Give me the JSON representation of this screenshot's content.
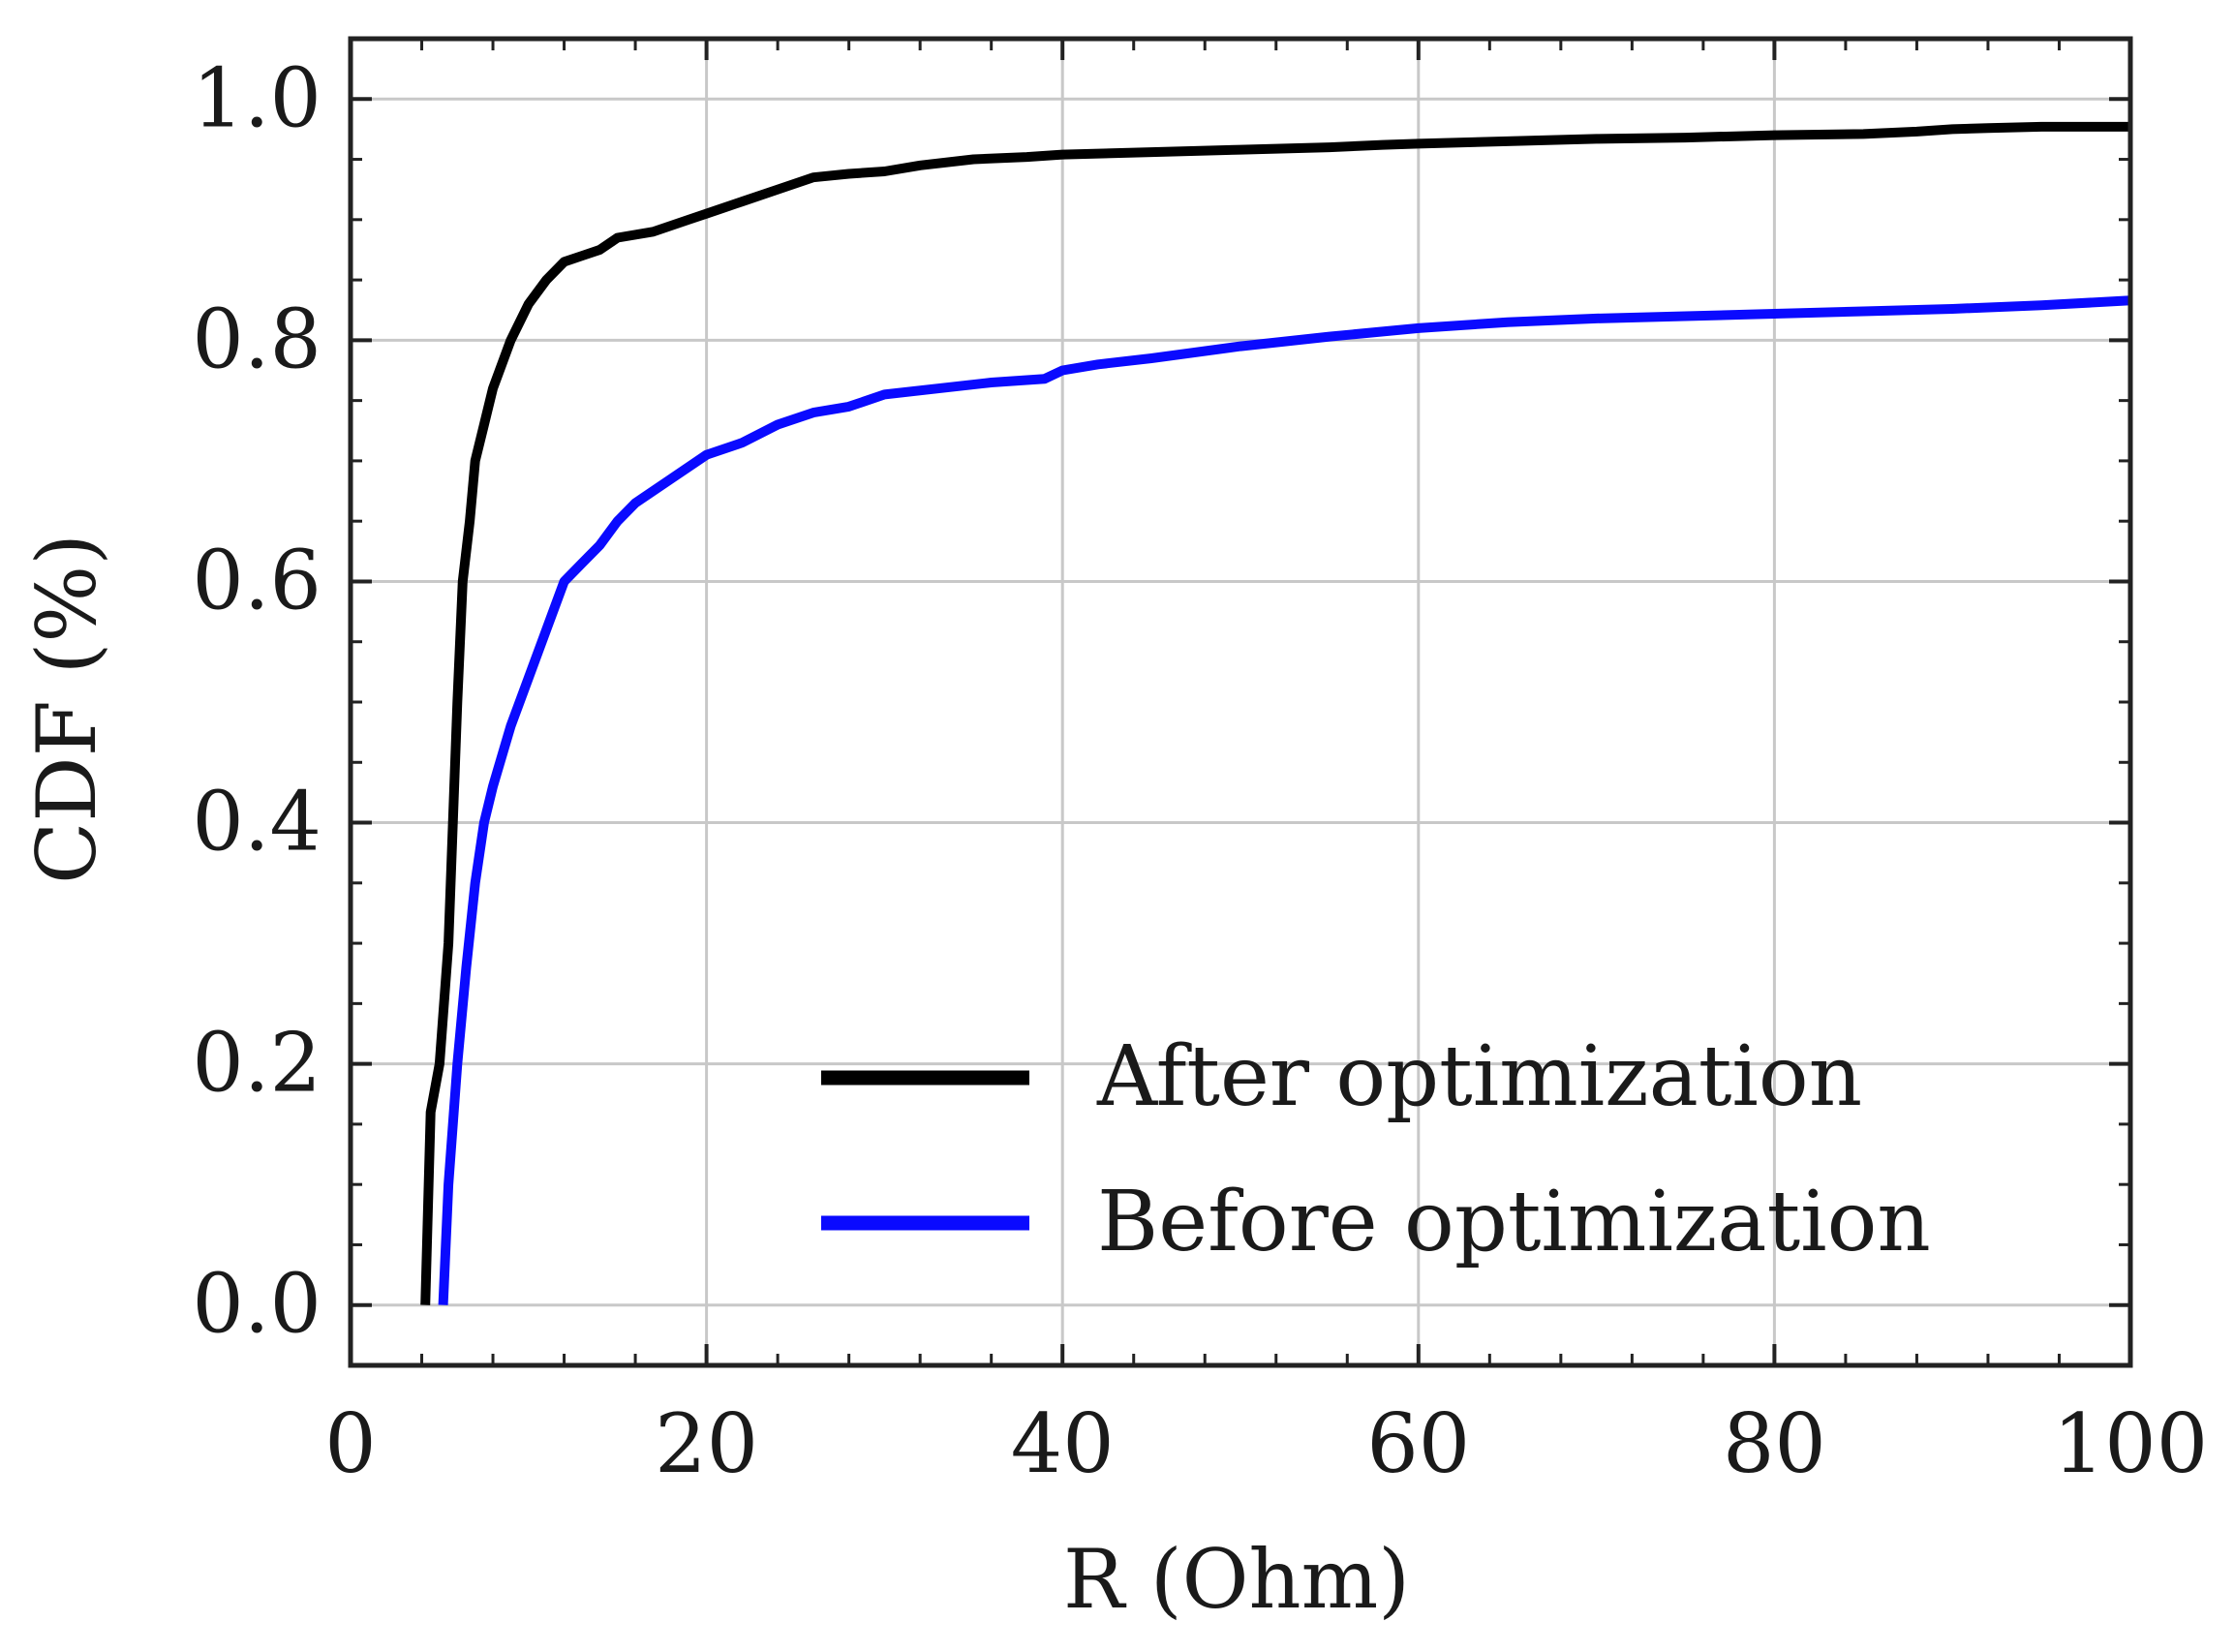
{
  "chart_data": {
    "type": "line",
    "title": "",
    "xlabel": "R (Ohm)",
    "ylabel": "CDF (%)",
    "xlim": [
      0,
      100
    ],
    "ylim": [
      -0.05,
      1.05
    ],
    "xticks": [
      0,
      20,
      40,
      60,
      80,
      100
    ],
    "xtick_labels": [
      "0",
      "20",
      "40",
      "60",
      "80",
      "100"
    ],
    "yticks": [
      0.0,
      0.2,
      0.4,
      0.6,
      0.8,
      1.0
    ],
    "ytick_labels": [
      "0.0",
      "0.2",
      "0.4",
      "0.6",
      "0.8",
      "1.0"
    ],
    "grid": true,
    "legend_position": "lower-right",
    "series": [
      {
        "name": "After optimization",
        "color": "#000000",
        "x": [
          4.2,
          4.5,
          5.0,
          5.5,
          6.0,
          6.3,
          6.7,
          7.0,
          7.5,
          8.0,
          9.0,
          10.0,
          11.0,
          12.0,
          13.0,
          14.0,
          15.0,
          17.0,
          19.0,
          20.0,
          21.0,
          22.0,
          24.0,
          26.0,
          28.0,
          30.0,
          32.0,
          35.0,
          38.0,
          40.0,
          45.0,
          50.0,
          55.0,
          58.0,
          60.0,
          65.0,
          70.0,
          75.0,
          80.0,
          85.0,
          88.0,
          90.0,
          92.0,
          95.0,
          100.0
        ],
        "y": [
          0.0,
          0.16,
          0.2,
          0.3,
          0.5,
          0.6,
          0.65,
          0.7,
          0.73,
          0.76,
          0.8,
          0.83,
          0.85,
          0.865,
          0.87,
          0.875,
          0.885,
          0.89,
          0.9,
          0.905,
          0.91,
          0.915,
          0.925,
          0.935,
          0.938,
          0.94,
          0.945,
          0.95,
          0.952,
          0.954,
          0.956,
          0.958,
          0.96,
          0.962,
          0.963,
          0.965,
          0.967,
          0.968,
          0.97,
          0.971,
          0.973,
          0.975,
          0.976,
          0.977,
          0.977
        ]
      },
      {
        "name": "Before optimization",
        "color": "#0a0aff",
        "x": [
          5.2,
          5.5,
          6.0,
          6.5,
          7.0,
          7.5,
          8.0,
          9.0,
          10.0,
          11.0,
          12.0,
          13.0,
          14.0,
          15.0,
          16.0,
          18.0,
          20.0,
          22.0,
          24.0,
          26.0,
          28.0,
          30.0,
          33.0,
          36.0,
          39.0,
          40.0,
          42.0,
          45.0,
          50.0,
          55.0,
          60.0,
          65.0,
          70.0,
          75.0,
          80.0,
          85.0,
          90.0,
          95.0,
          100.0
        ],
        "y": [
          0.0,
          0.1,
          0.2,
          0.28,
          0.35,
          0.4,
          0.43,
          0.48,
          0.52,
          0.56,
          0.6,
          0.615,
          0.63,
          0.65,
          0.665,
          0.685,
          0.705,
          0.715,
          0.73,
          0.74,
          0.745,
          0.755,
          0.76,
          0.765,
          0.768,
          0.775,
          0.78,
          0.785,
          0.795,
          0.803,
          0.81,
          0.815,
          0.818,
          0.82,
          0.822,
          0.824,
          0.826,
          0.829,
          0.833
        ]
      }
    ]
  }
}
